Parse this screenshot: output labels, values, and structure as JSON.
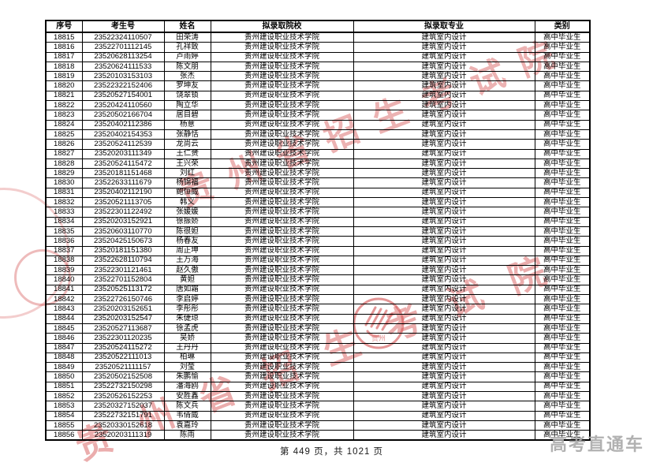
{
  "page": {
    "footer_text": "第 449 页，共 1021 页",
    "brand_watermark": "高考直通车"
  },
  "watermark": {
    "stamp_text": "贵州省招生考试院",
    "seal_small_text": "贵州",
    "red_color": "rgba(214,90,90,0.55)",
    "brand_gray_color": "#a9a9a9"
  },
  "table": {
    "headers": [
      "序号",
      "考生号",
      "姓名",
      "拟录取院校",
      "拟录取专业",
      "类别"
    ],
    "college": "贵州建设职业技术学院",
    "major": "建筑室内设计",
    "category": "高中毕业生",
    "rows": [
      [
        "18815",
        "23522324110507",
        "田荣涛",
        "贵州建设职业技术学院",
        "建筑室内设计",
        "高中毕业生"
      ],
      [
        "18816",
        "23522701112145",
        "孔祥致",
        "贵州建设职业技术学院",
        "建筑室内设计",
        "高中毕业生"
      ],
      [
        "18817",
        "23520628113254",
        "卢雨婷",
        "贵州建设职业技术学院",
        "建筑室内设计",
        "高中毕业生"
      ],
      [
        "18818",
        "23520624111533",
        "陈文朋",
        "贵州建设职业技术学院",
        "建筑室内设计",
        "高中毕业生"
      ],
      [
        "18819",
        "23520103153103",
        "张杰",
        "贵州建设职业技术学院",
        "建筑室内设计",
        "高中毕业生"
      ],
      [
        "18820",
        "23522322152406",
        "罗坤友",
        "贵州建设职业技术学院",
        "建筑室内设计",
        "高中毕业生"
      ],
      [
        "18821",
        "23520527154001",
        "饶翠锁",
        "贵州建设职业技术学院",
        "建筑室内设计",
        "高中毕业生"
      ],
      [
        "18822",
        "23520424110560",
        "陶立华",
        "贵州建设职业技术学院",
        "建筑室内设计",
        "高中毕业生"
      ],
      [
        "18823",
        "23520502166704",
        "居目碧",
        "贵州建设职业技术学院",
        "建筑室内设计",
        "高中毕业生"
      ],
      [
        "18824",
        "23520402112386",
        "杨意",
        "贵州建设职业技术学院",
        "建筑室内设计",
        "高中毕业生"
      ],
      [
        "18825",
        "23520402154353",
        "张静恬",
        "贵州建设职业技术学院",
        "建筑室内设计",
        "高中毕业生"
      ],
      [
        "18826",
        "23520524112539",
        "龙尚云",
        "贵州建设职业技术学院",
        "建筑室内设计",
        "高中毕业生"
      ],
      [
        "18827",
        "23520203111349",
        "王仁赟",
        "贵州建设职业技术学院",
        "建筑室内设计",
        "高中毕业生"
      ],
      [
        "18828",
        "23520524115472",
        "王兴荣",
        "贵州建设职业技术学院",
        "建筑室内设计",
        "高中毕业生"
      ],
      [
        "18829",
        "23520181151468",
        "刘红",
        "贵州建设职业技术学院",
        "建筑室内设计",
        "高中毕业生"
      ],
      [
        "18830",
        "23522633111679",
        "杨锦福",
        "贵州建设职业技术学院",
        "建筑室内设计",
        "高中毕业生"
      ],
      [
        "18831",
        "23520402112190",
        "鲍恒威",
        "贵州建设职业技术学院",
        "建筑室内设计",
        "高中毕业生"
      ],
      [
        "18832",
        "23520521113705",
        "韩义",
        "贵州建设职业技术学院",
        "建筑室内设计",
        "高中毕业生"
      ],
      [
        "18833",
        "23522301122492",
        "张媛媛",
        "贵州建设职业技术学院",
        "建筑室内设计",
        "高中毕业生"
      ],
      [
        "18834",
        "23520203152921",
        "徐振娇",
        "贵州建设职业技术学院",
        "建筑室内设计",
        "高中毕业生"
      ],
      [
        "18835",
        "23520603110770",
        "陈很妲",
        "贵州建设职业技术学院",
        "建筑室内设计",
        "高中毕业生"
      ],
      [
        "18836",
        "23520425150673",
        "杨春友",
        "贵州建设职业技术学院",
        "建筑室内设计",
        "高中毕业生"
      ],
      [
        "18837",
        "23520181151380",
        "周正坤",
        "贵州建设职业技术学院",
        "建筑室内设计",
        "高中毕业生"
      ],
      [
        "18838",
        "23522628110794",
        "王万海",
        "贵州建设职业技术学院",
        "建筑室内设计",
        "高中毕业生"
      ],
      [
        "18839",
        "23522301121461",
        "赵久傲",
        "贵州建设职业技术学院",
        "建筑室内设计",
        "高中毕业生"
      ],
      [
        "18840",
        "23522701152804",
        "黄妲",
        "贵州建设职业技术学院",
        "建筑室内设计",
        "高中毕业生"
      ],
      [
        "18841",
        "23520525113172",
        "唐如霜",
        "贵州建设职业技术学院",
        "建筑室内设计",
        "高中毕业生"
      ],
      [
        "18842",
        "23522726150746",
        "李启婷",
        "贵州建设职业技术学院",
        "建筑室内设计",
        "高中毕业生"
      ],
      [
        "18843",
        "23520203152651",
        "李彤彤",
        "贵州建设职业技术学院",
        "建筑室内设计",
        "高中毕业生"
      ],
      [
        "18844",
        "23520203152547",
        "朱倢琼",
        "贵州建设职业技术学院",
        "建筑室内设计",
        "高中毕业生"
      ],
      [
        "18845",
        "23520527113687",
        "徐孟虎",
        "贵州建设职业技术学院",
        "建筑室内设计",
        "高中毕业生"
      ],
      [
        "18846",
        "23522301120235",
        "吴娇",
        "贵州建设职业技术学院",
        "建筑室内设计",
        "高中毕业生"
      ],
      [
        "18847",
        "23520524115272",
        "王丹丹",
        "贵州建设职业技术学院",
        "建筑室内设计",
        "高中毕业生"
      ],
      [
        "18848",
        "23520522111013",
        "柏琳",
        "贵州建设职业技术学院",
        "建筑室内设计",
        "高中毕业生"
      ],
      [
        "18849",
        "23520521111157",
        "刘莹",
        "贵州建设职业技术学院",
        "建筑室内设计",
        "高中毕业生"
      ],
      [
        "18850",
        "23520502152508",
        "朱鹏愉",
        "贵州建设职业技术学院",
        "建筑室内设计",
        "高中毕业生"
      ],
      [
        "18851",
        "23522732150298",
        "潘海鸥",
        "贵州建设职业技术学院",
        "建筑室内设计",
        "高中毕业生"
      ],
      [
        "18852",
        "23520526152253",
        "安胜鑫",
        "贵州建设职业技术学院",
        "建筑室内设计",
        "高中毕业生"
      ],
      [
        "18853",
        "23520327152037",
        "陈文兵",
        "贵州建设职业技术学院",
        "建筑室内设计",
        "高中毕业生"
      ],
      [
        "18854",
        "23522732151791",
        "韦倩威",
        "贵州建设职业技术学院",
        "建筑室内设计",
        "高中毕业生"
      ],
      [
        "18855",
        "23520330152618",
        "袁嘉玲",
        "贵州建设职业技术学院",
        "建筑室内设计",
        "高中毕业生"
      ],
      [
        "18856",
        "23520203111319",
        "陈雨",
        "贵州建设职业技术学院",
        "建筑室内设计",
        "高中毕业生"
      ]
    ]
  }
}
